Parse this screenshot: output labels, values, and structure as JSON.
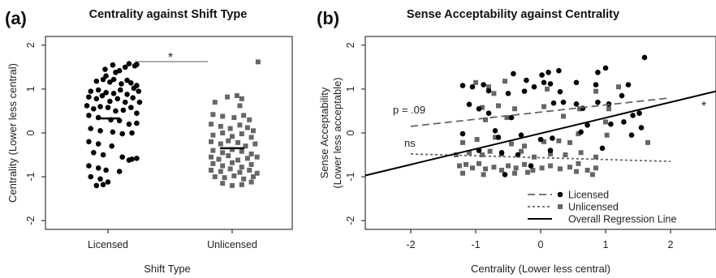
{
  "chart_data": [
    {
      "type": "scatter",
      "panel_label": "(a)",
      "title": "Centrality against Shift Type",
      "xlabel": "Shift Type",
      "ylabel": "Centrality (Lower less central)",
      "categories": [
        "Licensed",
        "Unlicensed"
      ],
      "yticks": [
        "-2",
        "-1",
        "0",
        "1",
        "2"
      ],
      "ylim": [
        -2.2,
        2.2
      ],
      "significance": "*",
      "series": [
        {
          "category": "Licensed",
          "marker": "circle",
          "color": "#000000",
          "mean": 0.33,
          "points": [
            [
              -0.03,
              1.45
            ],
            [
              0.05,
              1.55
            ],
            [
              -0.02,
              1.3
            ],
            [
              0.08,
              1.38
            ],
            [
              0.12,
              1.42
            ],
            [
              0.18,
              1.5
            ],
            [
              0.22,
              1.58
            ],
            [
              0.28,
              1.53
            ],
            [
              0.3,
              1.56
            ],
            [
              -0.12,
              1.18
            ],
            [
              -0.05,
              1.22
            ],
            [
              0.02,
              1.16
            ],
            [
              0.06,
              1.22
            ],
            [
              0.14,
              1.12
            ],
            [
              0.2,
              1.2
            ],
            [
              0.24,
              1.14
            ],
            [
              0.3,
              1.08
            ],
            [
              -0.18,
              0.95
            ],
            [
              -0.1,
              0.98
            ],
            [
              -0.02,
              0.92
            ],
            [
              0.06,
              0.9
            ],
            [
              0.13,
              0.98
            ],
            [
              0.2,
              0.88
            ],
            [
              0.27,
              1.02
            ],
            [
              0.32,
              0.95
            ],
            [
              -0.2,
              0.82
            ],
            [
              -0.12,
              0.78
            ],
            [
              -0.06,
              0.85
            ],
            [
              0.02,
              0.72
            ],
            [
              0.1,
              0.78
            ],
            [
              0.18,
              0.7
            ],
            [
              0.26,
              0.8
            ],
            [
              0.33,
              0.7
            ],
            [
              -0.22,
              0.62
            ],
            [
              -0.15,
              0.55
            ],
            [
              -0.08,
              0.6
            ],
            [
              0.0,
              0.58
            ],
            [
              0.08,
              0.5
            ],
            [
              0.16,
              0.52
            ],
            [
              0.24,
              0.58
            ],
            [
              0.3,
              0.45
            ],
            [
              -0.2,
              0.4
            ],
            [
              -0.1,
              0.35
            ],
            [
              0.03,
              0.3
            ],
            [
              0.12,
              0.28
            ],
            [
              0.22,
              0.2
            ],
            [
              0.3,
              0.22
            ],
            [
              -0.18,
              0.1
            ],
            [
              -0.08,
              0.05
            ],
            [
              0.05,
              0.02
            ],
            [
              0.15,
              -0.02
            ],
            [
              0.25,
              0.0
            ],
            [
              -0.2,
              -0.2
            ],
            [
              -0.1,
              -0.25
            ],
            [
              0.04,
              -0.3
            ],
            [
              -0.15,
              -0.45
            ],
            [
              -0.05,
              -0.5
            ],
            [
              0.15,
              -0.55
            ],
            [
              0.25,
              -0.6
            ],
            [
              0.3,
              -0.58
            ],
            [
              0.22,
              -0.62
            ],
            [
              -0.2,
              -0.75
            ],
            [
              -0.1,
              -0.8
            ],
            [
              -0.02,
              -0.85
            ],
            [
              0.12,
              -0.88
            ],
            [
              -0.18,
              -1.0
            ],
            [
              -0.08,
              -1.05
            ],
            [
              0.0,
              -1.12
            ],
            [
              -0.12,
              -1.2
            ],
            [
              -0.05,
              -1.18
            ]
          ]
        },
        {
          "category": "Unlicensed",
          "marker": "square",
          "color": "#666666",
          "mean": -0.35,
          "points": [
            [
              0.27,
              1.62
            ],
            [
              -0.05,
              0.82
            ],
            [
              0.05,
              0.85
            ],
            [
              0.1,
              0.78
            ],
            [
              -0.18,
              0.7
            ],
            [
              0.08,
              0.62
            ],
            [
              -0.2,
              0.42
            ],
            [
              -0.1,
              0.38
            ],
            [
              0.02,
              0.35
            ],
            [
              0.12,
              0.4
            ],
            [
              0.18,
              0.3
            ],
            [
              -0.22,
              0.2
            ],
            [
              -0.12,
              0.15
            ],
            [
              -0.02,
              0.1
            ],
            [
              0.08,
              0.18
            ],
            [
              0.16,
              0.12
            ],
            [
              0.22,
              0.05
            ],
            [
              -0.2,
              -0.05
            ],
            [
              -0.1,
              0.0
            ],
            [
              0.0,
              -0.08
            ],
            [
              0.1,
              -0.02
            ],
            [
              0.2,
              -0.1
            ],
            [
              -0.22,
              -0.2
            ],
            [
              -0.12,
              -0.25
            ],
            [
              -0.04,
              -0.18
            ],
            [
              0.06,
              -0.22
            ],
            [
              0.14,
              -0.3
            ],
            [
              0.24,
              -0.25
            ],
            [
              -0.2,
              -0.4
            ],
            [
              -0.1,
              -0.45
            ],
            [
              0.0,
              -0.38
            ],
            [
              0.1,
              -0.42
            ],
            [
              0.2,
              -0.48
            ],
            [
              -0.22,
              -0.55
            ],
            [
              -0.14,
              -0.6
            ],
            [
              -0.04,
              -0.52
            ],
            [
              0.06,
              -0.62
            ],
            [
              0.16,
              -0.58
            ],
            [
              0.26,
              -0.55
            ],
            [
              -0.2,
              -0.7
            ],
            [
              -0.1,
              -0.75
            ],
            [
              0.0,
              -0.68
            ],
            [
              0.1,
              -0.78
            ],
            [
              0.2,
              -0.72
            ],
            [
              -0.22,
              -0.85
            ],
            [
              -0.12,
              -0.88
            ],
            [
              -0.02,
              -0.82
            ],
            [
              0.08,
              -0.9
            ],
            [
              0.18,
              -0.85
            ],
            [
              0.26,
              -0.92
            ],
            [
              -0.18,
              -1.0
            ],
            [
              -0.08,
              -1.02
            ],
            [
              0.02,
              -0.98
            ],
            [
              0.12,
              -1.05
            ],
            [
              0.22,
              -1.0
            ],
            [
              -0.1,
              -1.15
            ],
            [
              0.0,
              -1.2
            ],
            [
              0.1,
              -1.18
            ],
            [
              0.2,
              -1.12
            ]
          ]
        }
      ]
    },
    {
      "type": "scatter",
      "panel_label": "(b)",
      "title": "Sense Acceptability against Centrality",
      "xlabel": "Centrality (Lower less central)",
      "ylabel": [
        "Sense Acceptability",
        "(Lower less acceptable)"
      ],
      "xticks": [
        "-2",
        "-1",
        "0",
        "1",
        "2"
      ],
      "yticks": [
        "-2",
        "-1",
        "0",
        "1",
        "2"
      ],
      "xlim": [
        -2.7,
        2.7
      ],
      "ylim": [
        -2.2,
        2.2
      ],
      "series": [
        {
          "name": "Licensed",
          "marker": "circle",
          "line": "dashed",
          "color": "#000000",
          "line_color": "#666666",
          "fit_start": [
            -2.0,
            0.15
          ],
          "fit_end": [
            2.0,
            0.8
          ],
          "fit_label": "p = .09",
          "points": [
            [
              -1.2,
              1.08
            ],
            [
              -1.05,
              1.05
            ],
            [
              -0.88,
              1.1
            ],
            [
              -0.8,
              0.96
            ],
            [
              -0.5,
              0.9
            ],
            [
              -0.25,
              0.95
            ],
            [
              -0.1,
              1.05
            ],
            [
              0.05,
              1.15
            ],
            [
              0.15,
              1.12
            ],
            [
              0.3,
              0.94
            ],
            [
              0.55,
              1.15
            ],
            [
              0.85,
              1.1
            ],
            [
              -0.42,
              1.35
            ],
            [
              -0.22,
              1.2
            ],
            [
              0.02,
              1.32
            ],
            [
              0.12,
              1.38
            ],
            [
              0.28,
              1.42
            ],
            [
              -1.1,
              0.65
            ],
            [
              -0.95,
              0.55
            ],
            [
              -0.8,
              0.45
            ],
            [
              -0.45,
              0.35
            ],
            [
              0.2,
              0.68
            ],
            [
              0.35,
              0.7
            ],
            [
              0.55,
              0.66
            ],
            [
              0.65,
              0.56
            ],
            [
              0.88,
              0.7
            ],
            [
              1.05,
              0.66
            ],
            [
              1.25,
              0.85
            ],
            [
              1.42,
              0.4
            ],
            [
              1.52,
              0.45
            ],
            [
              0.72,
              0.18
            ],
            [
              1.08,
              0.2
            ],
            [
              1.28,
              0.25
            ],
            [
              1.55,
              0.12
            ],
            [
              -1.2,
              -0.02
            ],
            [
              -0.7,
              0.05
            ],
            [
              -0.65,
              -0.1
            ],
            [
              -0.3,
              -0.05
            ],
            [
              0.0,
              -0.15
            ],
            [
              0.18,
              -0.12
            ],
            [
              0.62,
              0.02
            ],
            [
              1.4,
              -0.05
            ],
            [
              -0.95,
              -0.4
            ],
            [
              -0.6,
              -0.45
            ],
            [
              -0.35,
              -0.5
            ],
            [
              0.15,
              -0.4
            ],
            [
              0.95,
              -0.35
            ],
            [
              -0.55,
              -0.95
            ],
            [
              -0.15,
              -0.75
            ],
            [
              1.0,
              1.48
            ],
            [
              1.6,
              1.72
            ],
            [
              1.35,
              1.1
            ],
            [
              0.88,
              1.38
            ]
          ]
        },
        {
          "name": "Unlicensed",
          "marker": "square",
          "line": "dotted",
          "color": "#666666",
          "line_color": "#666666",
          "fit_start": [
            -2.0,
            -0.48
          ],
          "fit_end": [
            2.0,
            -0.65
          ],
          "fit_label": "ns",
          "points": [
            [
              -1.0,
              1.15
            ],
            [
              -0.8,
              1.05
            ],
            [
              -0.72,
              0.9
            ],
            [
              -0.55,
              1.18
            ],
            [
              0.1,
              1.0
            ],
            [
              0.85,
              0.95
            ],
            [
              1.2,
              1.05
            ],
            [
              -0.9,
              0.58
            ],
            [
              -0.65,
              0.62
            ],
            [
              -0.4,
              0.55
            ],
            [
              0.05,
              0.6
            ],
            [
              0.6,
              0.55
            ],
            [
              1.05,
              0.55
            ],
            [
              -0.85,
              0.3
            ],
            [
              -0.52,
              0.35
            ],
            [
              0.35,
              0.38
            ],
            [
              0.58,
              -0.02
            ],
            [
              1.0,
              0.25
            ],
            [
              -1.2,
              -0.22
            ],
            [
              -0.98,
              -0.15
            ],
            [
              -0.7,
              -0.1
            ],
            [
              -0.45,
              -0.25
            ],
            [
              -0.25,
              -0.3
            ],
            [
              0.05,
              -0.2
            ],
            [
              0.28,
              -0.18
            ],
            [
              0.45,
              -0.22
            ],
            [
              1.02,
              -0.05
            ],
            [
              1.65,
              -0.22
            ],
            [
              -1.3,
              -0.5
            ],
            [
              -1.1,
              -0.45
            ],
            [
              -0.9,
              -0.5
            ],
            [
              -0.78,
              -0.42
            ],
            [
              -0.6,
              -0.48
            ],
            [
              -0.3,
              -0.42
            ],
            [
              -0.1,
              -0.55
            ],
            [
              0.15,
              -0.48
            ],
            [
              0.38,
              -0.5
            ],
            [
              0.62,
              -0.45
            ],
            [
              0.85,
              -0.55
            ],
            [
              -1.25,
              -0.75
            ],
            [
              -1.15,
              -0.72
            ],
            [
              -1.05,
              -0.8
            ],
            [
              -0.95,
              -0.7
            ],
            [
              -0.85,
              -0.82
            ],
            [
              -0.72,
              -0.78
            ],
            [
              -0.6,
              -0.85
            ],
            [
              -0.5,
              -0.75
            ],
            [
              -0.38,
              -0.8
            ],
            [
              -0.25,
              -0.72
            ],
            [
              -0.12,
              -0.85
            ],
            [
              0.02,
              -0.8
            ],
            [
              0.15,
              -0.75
            ],
            [
              0.3,
              -0.82
            ],
            [
              0.45,
              -0.78
            ],
            [
              0.58,
              -0.7
            ],
            [
              0.72,
              -0.85
            ],
            [
              0.85,
              -0.8
            ],
            [
              -1.2,
              -0.92
            ],
            [
              -0.88,
              -0.95
            ],
            [
              -0.4,
              -0.92
            ],
            [
              -0.2,
              -0.9
            ],
            [
              0.55,
              -0.88
            ],
            [
              0.8,
              -0.95
            ]
          ]
        },
        {
          "name": "Overall Regression Line",
          "marker": "none",
          "line": "solid",
          "color": "#000000",
          "line_color": "#000000",
          "fit_start": [
            -2.7,
            -0.97
          ],
          "fit_end": [
            2.7,
            0.95
          ],
          "fit_label": "*"
        }
      ]
    }
  ]
}
